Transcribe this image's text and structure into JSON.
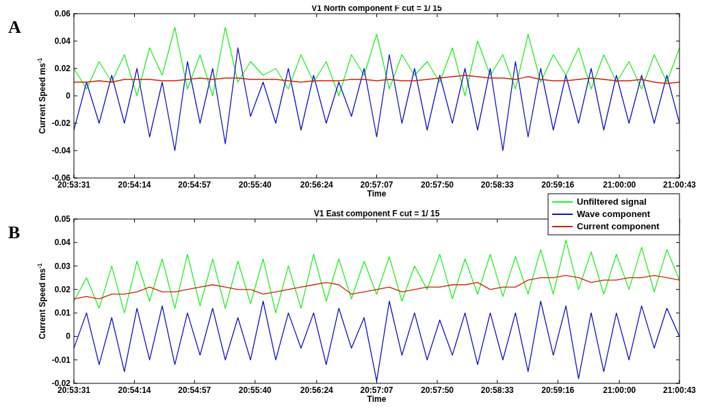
{
  "chart_data": [
    {
      "type": "line",
      "title": "V1 North component F cut = 1/ 15",
      "xlabel": "Time",
      "ylabel": "Current Speed ms$^{-1}$",
      "annotations": [
        "A"
      ],
      "x": [
        20.8919,
        20.8944,
        20.8969,
        20.8994,
        20.9019,
        20.9044,
        20.9069,
        20.9094,
        20.9119,
        20.9144,
        20.9169,
        20.9194,
        20.9219,
        20.9244,
        20.9269,
        20.9294,
        20.9319,
        20.9344,
        20.9369,
        20.9394,
        20.9419,
        20.9444,
        20.9469,
        20.9494,
        20.9519,
        20.9544,
        20.9569,
        20.9594,
        20.9619,
        20.9644,
        20.9669,
        20.9694,
        20.9719,
        20.9744,
        20.9769,
        20.9794,
        20.9819,
        20.9844,
        20.9869,
        20.9894,
        20.9919,
        20.9944,
        20.9969,
        20.9994,
        21.0019,
        21.0044,
        21.0069,
        21.0094,
        21.0119
      ],
      "xlim": [
        20.8919,
        21.0119
      ],
      "xticks": [
        {
          "value": 20.8919,
          "label": "20:53:31"
        },
        {
          "value": 20.9039,
          "label": "20:54:14"
        },
        {
          "value": 20.9158,
          "label": "20:54:57"
        },
        {
          "value": 20.9278,
          "label": "20:55:40"
        },
        {
          "value": 20.94,
          "label": "20:56:24"
        },
        {
          "value": 20.9519,
          "label": "20:57:07"
        },
        {
          "value": 20.9639,
          "label": "20:57:50"
        },
        {
          "value": 20.9758,
          "label": "20:58:33"
        },
        {
          "value": 20.9878,
          "label": "20:59:16"
        },
        {
          "value": 21.0,
          "label": "21:00:00"
        },
        {
          "value": 21.0119,
          "label": "21:00:43"
        }
      ],
      "ylim": [
        -0.06,
        0.06
      ],
      "yticks": [
        -0.06,
        -0.04,
        -0.02,
        0,
        0.02,
        0.04,
        0.06
      ],
      "legend": false,
      "series": [
        {
          "color": "#22ee22",
          "values": [
            0.02,
            0.005,
            0.025,
            0.01,
            0.03,
            0.0,
            0.035,
            0.015,
            0.05,
            0.005,
            0.03,
            0.0,
            0.05,
            0.01,
            0.025,
            0.015,
            0.02,
            0.005,
            0.03,
            0.01,
            0.025,
            0.0,
            0.03,
            0.015,
            0.045,
            0.005,
            0.03,
            0.015,
            0.025,
            0.01,
            0.035,
            0.0,
            0.04,
            0.015,
            0.03,
            0.005,
            0.045,
            0.01,
            0.03,
            0.015,
            0.035,
            0.005,
            0.03,
            0.01,
            0.025,
            0.005,
            0.03,
            0.01,
            0.035
          ]
        },
        {
          "color": "#1010cc",
          "values": [
            -0.025,
            0.01,
            -0.02,
            0.015,
            -0.02,
            0.02,
            -0.03,
            0.01,
            -0.04,
            0.025,
            -0.02,
            0.02,
            -0.035,
            0.035,
            -0.015,
            0.01,
            -0.02,
            0.02,
            -0.025,
            0.015,
            -0.02,
            0.01,
            -0.015,
            0.02,
            -0.03,
            0.03,
            -0.02,
            0.02,
            -0.025,
            0.015,
            -0.02,
            0.02,
            -0.025,
            0.02,
            -0.04,
            0.025,
            -0.03,
            0.02,
            -0.025,
            0.015,
            -0.02,
            0.02,
            -0.025,
            0.015,
            -0.02,
            0.015,
            -0.02,
            0.015,
            -0.02
          ]
        },
        {
          "color": "#cc2200",
          "values": [
            0.01,
            0.01,
            0.011,
            0.01,
            0.012,
            0.012,
            0.012,
            0.011,
            0.011,
            0.012,
            0.013,
            0.012,
            0.013,
            0.013,
            0.012,
            0.012,
            0.012,
            0.011,
            0.01,
            0.011,
            0.011,
            0.011,
            0.012,
            0.012,
            0.011,
            0.012,
            0.011,
            0.011,
            0.012,
            0.013,
            0.014,
            0.015,
            0.014,
            0.013,
            0.013,
            0.012,
            0.014,
            0.012,
            0.011,
            0.011,
            0.012,
            0.013,
            0.012,
            0.011,
            0.011,
            0.012,
            0.01,
            0.009,
            0.01
          ]
        }
      ]
    },
    {
      "type": "line",
      "title": "V1 East component F cut = 1/ 15",
      "xlabel": "Time",
      "ylabel": "Current Speed ms$^{-1}$",
      "annotations": [
        "B"
      ],
      "x": [
        20.8919,
        20.8944,
        20.8969,
        20.8994,
        20.9019,
        20.9044,
        20.9069,
        20.9094,
        20.9119,
        20.9144,
        20.9169,
        20.9194,
        20.9219,
        20.9244,
        20.9269,
        20.9294,
        20.9319,
        20.9344,
        20.9369,
        20.9394,
        20.9419,
        20.9444,
        20.9469,
        20.9494,
        20.9519,
        20.9544,
        20.9569,
        20.9594,
        20.9619,
        20.9644,
        20.9669,
        20.9694,
        20.9719,
        20.9744,
        20.9769,
        20.9794,
        20.9819,
        20.9844,
        20.9869,
        20.9894,
        20.9919,
        20.9944,
        20.9969,
        20.9994,
        21.0019,
        21.0044,
        21.0069,
        21.0094,
        21.0119
      ],
      "xlim": [
        20.8919,
        21.0119
      ],
      "xticks": [
        {
          "value": 20.8919,
          "label": "20:53:31"
        },
        {
          "value": 20.9039,
          "label": "20:54:14"
        },
        {
          "value": 20.9158,
          "label": "20:54:57"
        },
        {
          "value": 20.9278,
          "label": "20:55:40"
        },
        {
          "value": 20.94,
          "label": "20:56:24"
        },
        {
          "value": 20.9519,
          "label": "20:57:07"
        },
        {
          "value": 20.9639,
          "label": "20:57:50"
        },
        {
          "value": 20.9758,
          "label": "20:58:33"
        },
        {
          "value": 20.9878,
          "label": "20:59:16"
        },
        {
          "value": 21.0,
          "label": "21:00:00"
        },
        {
          "value": 21.0119,
          "label": "21:00:43"
        }
      ],
      "ylim": [
        -0.02,
        0.05
      ],
      "yticks": [
        -0.02,
        -0.01,
        0,
        0.01,
        0.02,
        0.03,
        0.04,
        0.05
      ],
      "legend": "top right",
      "series": [
        {
          "name": "Unfiltered signal",
          "color": "#22ee22",
          "values": [
            0.015,
            0.025,
            0.012,
            0.03,
            0.01,
            0.032,
            0.015,
            0.033,
            0.012,
            0.035,
            0.013,
            0.033,
            0.012,
            0.032,
            0.014,
            0.033,
            0.01,
            0.03,
            0.012,
            0.035,
            0.015,
            0.033,
            0.016,
            0.032,
            0.018,
            0.034,
            0.015,
            0.03,
            0.02,
            0.035,
            0.016,
            0.033,
            0.018,
            0.035,
            0.017,
            0.034,
            0.018,
            0.037,
            0.018,
            0.041,
            0.02,
            0.036,
            0.018,
            0.035,
            0.02,
            0.038,
            0.019,
            0.037,
            0.024
          ]
        },
        {
          "name": "Wave component",
          "color": "#1010cc",
          "values": [
            -0.005,
            0.01,
            -0.012,
            0.008,
            -0.015,
            0.012,
            -0.01,
            0.013,
            -0.012,
            0.01,
            -0.008,
            0.012,
            -0.01,
            0.008,
            -0.01,
            0.015,
            -0.01,
            0.01,
            -0.005,
            0.01,
            -0.012,
            0.012,
            -0.005,
            0.008,
            -0.019,
            0.015,
            -0.008,
            0.01,
            -0.01,
            0.007,
            -0.008,
            0.01,
            -0.012,
            0.01,
            -0.01,
            0.01,
            -0.015,
            0.015,
            -0.008,
            0.013,
            -0.018,
            0.01,
            -0.015,
            0.01,
            -0.01,
            0.013,
            -0.005,
            0.012,
            0.0
          ]
        },
        {
          "name": "Current component",
          "color": "#cc2200",
          "values": [
            0.016,
            0.017,
            0.016,
            0.018,
            0.018,
            0.019,
            0.021,
            0.019,
            0.019,
            0.02,
            0.021,
            0.022,
            0.021,
            0.02,
            0.02,
            0.018,
            0.019,
            0.02,
            0.021,
            0.022,
            0.023,
            0.022,
            0.018,
            0.019,
            0.02,
            0.021,
            0.019,
            0.02,
            0.021,
            0.021,
            0.022,
            0.022,
            0.023,
            0.02,
            0.021,
            0.021,
            0.024,
            0.025,
            0.025,
            0.026,
            0.025,
            0.023,
            0.024,
            0.024,
            0.025,
            0.025,
            0.026,
            0.025,
            0.024
          ]
        }
      ]
    }
  ]
}
